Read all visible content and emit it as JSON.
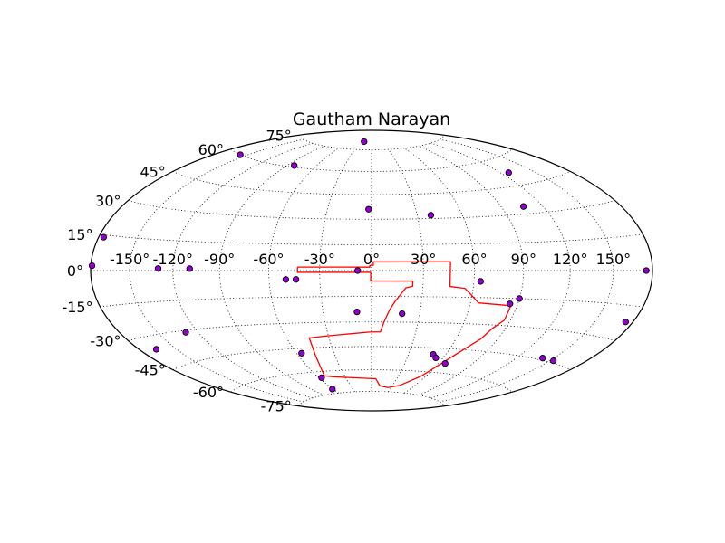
{
  "chart_data": {
    "type": "scatter",
    "projection": "hammer",
    "title": "Gautham Narayan",
    "xlabel": "",
    "ylabel": "",
    "grid": true,
    "colors": {
      "points": "#9400d3",
      "point_edge": "#000000",
      "outline": "#ff0000",
      "grid": "#000000",
      "frame": "#000000"
    },
    "lon_ticks": [
      -150,
      -120,
      -90,
      -60,
      -30,
      0,
      30,
      60,
      90,
      120,
      150
    ],
    "lon_tick_labels": [
      "-150°",
      "-120°",
      "-90°",
      "-60°",
      "-30°",
      "0°",
      "30°",
      "60°",
      "90°",
      "120°",
      "150°"
    ],
    "lat_ticks": [
      75,
      60,
      45,
      30,
      15,
      0,
      -15,
      -30,
      -45,
      -60,
      -75
    ],
    "lat_tick_labels": [
      "75°",
      "60°",
      "45°",
      "30°",
      "15°",
      "0°",
      "-15°",
      "-30°",
      "-45°",
      "-60°",
      "-75°"
    ],
    "points": [
      {
        "lon": -21,
        "lat": 81
      },
      {
        "lon": -157,
        "lat": 60
      },
      {
        "lon": -83,
        "lat": 61
      },
      {
        "lon": 127,
        "lat": 52
      },
      {
        "lon": 106,
        "lat": 34
      },
      {
        "lon": -2,
        "lat": 36
      },
      {
        "lon": 39,
        "lat": 32
      },
      {
        "lon": -176,
        "lat": 14
      },
      {
        "lon": -179,
        "lat": 2
      },
      {
        "lon": -130,
        "lat": 1
      },
      {
        "lon": -109,
        "lat": 1
      },
      {
        "lon": -8,
        "lat": 0
      },
      {
        "lon": 175,
        "lat": 0
      },
      {
        "lon": -50,
        "lat": -5
      },
      {
        "lon": -44,
        "lat": -5
      },
      {
        "lon": 64,
        "lat": -6
      },
      {
        "lon": 90,
        "lat": -15
      },
      {
        "lon": 85,
        "lat": -18
      },
      {
        "lon": -9,
        "lat": -24
      },
      {
        "lon": 19,
        "lat": -25
      },
      {
        "lon": -129,
        "lat": -31
      },
      {
        "lon": 174,
        "lat": -22
      },
      {
        "lon": -166,
        "lat": -36
      },
      {
        "lon": -56,
        "lat": -48
      },
      {
        "lon": 50,
        "lat": -49
      },
      {
        "lon": 54,
        "lat": -51
      },
      {
        "lon": 66,
        "lat": -54
      },
      {
        "lon": 141,
        "lat": -44
      },
      {
        "lon": 153,
        "lat": -44
      },
      {
        "lon": -57,
        "lat": -64
      },
      {
        "lon": -61,
        "lat": -72
      }
    ],
    "footprint": [
      [
        -43,
        2
      ],
      [
        -43,
        -1
      ],
      [
        -0.5,
        -1
      ],
      [
        -0.5,
        -6
      ],
      [
        24,
        -6
      ],
      [
        24,
        -9
      ],
      [
        20,
        -10
      ],
      [
        14,
        -18
      ],
      [
        11,
        -23
      ],
      [
        8,
        -30
      ],
      [
        6,
        -36
      ],
      [
        -0.5,
        -36
      ],
      [
        -29,
        -38
      ],
      [
        -44,
        -39
      ],
      [
        -46,
        -50
      ],
      [
        -52,
        -63
      ],
      [
        -43,
        -64
      ],
      [
        2,
        -66
      ],
      [
        5,
        -66
      ],
      [
        12,
        -71
      ],
      [
        25,
        -72
      ],
      [
        40,
        -70
      ],
      [
        55,
        -63
      ],
      [
        62,
        -55
      ],
      [
        71,
        -45
      ],
      [
        78,
        -38
      ],
      [
        81,
        -32
      ],
      [
        86,
        -27
      ],
      [
        86,
        -19
      ],
      [
        65,
        -18
      ],
      [
        60,
        -14
      ],
      [
        55,
        -10
      ],
      [
        46,
        -9
      ],
      [
        46,
        5
      ],
      [
        1,
        5
      ],
      [
        1,
        3
      ],
      [
        -1,
        3
      ],
      [
        -1,
        2
      ],
      [
        -43,
        2
      ]
    ]
  }
}
